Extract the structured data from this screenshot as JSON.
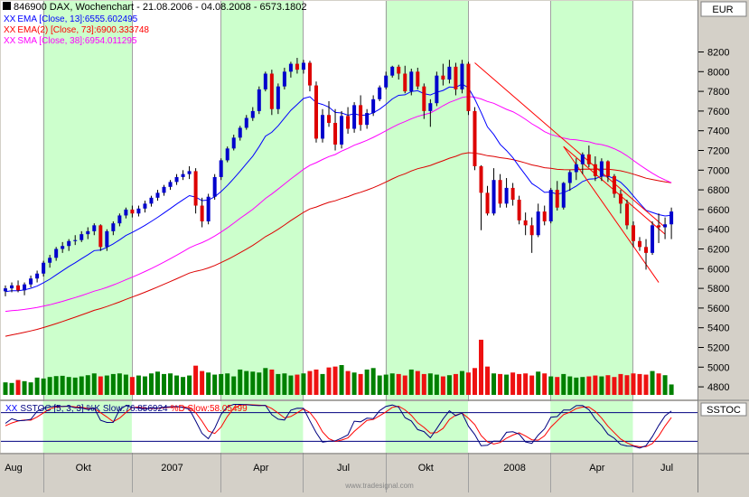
{
  "header": {
    "title": "846900  DAX, Wochenchart - 21.08.2006 - 04.08.2008 - 6573.1802",
    "currency": "EUR"
  },
  "legend": [
    {
      "marker": "XX",
      "text": "EMA [Close, 13]:6555.602495",
      "color": "#0000ff"
    },
    {
      "marker": "XX",
      "text": "EMA(2) [Close, 73]:6900.333748",
      "color": "#ff0000"
    },
    {
      "marker": "XX",
      "text": "SMA [Close, 38]:6954.011295",
      "color": "#ff00ff"
    }
  ],
  "stoch_panel": {
    "marker": "XX",
    "label_main": "SSTOC [5, 3, 3] %K Slow:76.856924",
    "label_d": "%D Slow:58.05499",
    "right_label": "SSTOC"
  },
  "watermark": "www.tradesignal.com",
  "colors": {
    "up": "#0000cc",
    "down": "#dd0000",
    "vol_up": "#008000",
    "vol_down": "#ee1111",
    "ema13": "#0000ff",
    "ema73": "#dd0000",
    "sma38": "#ff00ff",
    "stoch_k": "#000080",
    "stoch_d": "#ff0000",
    "shade": "#ccffcc",
    "plot_bg": "#ffffff",
    "frame_bg": "#d4d0c8"
  },
  "chart_data": {
    "type": "candlestick",
    "title": "846900  DAX, Wochenchart - 21.08.2006 - 04.08.2008 - 6573.1802",
    "y_axis": {
      "range": [
        4700,
        8400
      ],
      "ticks": [
        4800,
        5000,
        5200,
        5400,
        5600,
        5800,
        6000,
        6200,
        6400,
        6600,
        6800,
        7000,
        7200,
        7400,
        7600,
        7800,
        8000,
        8200
      ],
      "unit": "EUR"
    },
    "x_axis_labels": [
      "Aug",
      "Okt",
      "2007",
      "Apr",
      "Jul",
      "Okt",
      "2008",
      "Apr",
      "Jul"
    ],
    "x_axis_label_weeks": [
      1,
      12,
      26,
      40,
      53,
      66,
      80,
      93,
      104
    ],
    "x_gridline_weeks": [
      6,
      20,
      34,
      47,
      60,
      73,
      86,
      99
    ],
    "shaded_week_ranges": [
      [
        6,
        20
      ],
      [
        34,
        47
      ],
      [
        60,
        73
      ],
      [
        86,
        99
      ]
    ],
    "candles": [
      {
        "o": 5770,
        "h": 5830,
        "l": 5720,
        "c": 5800
      },
      {
        "o": 5800,
        "h": 5860,
        "l": 5760,
        "c": 5830
      },
      {
        "o": 5830,
        "h": 5880,
        "l": 5760,
        "c": 5780
      },
      {
        "o": 5780,
        "h": 5860,
        "l": 5730,
        "c": 5840
      },
      {
        "o": 5840,
        "h": 5930,
        "l": 5810,
        "c": 5900
      },
      {
        "o": 5900,
        "h": 5980,
        "l": 5860,
        "c": 5950
      },
      {
        "o": 5950,
        "h": 6080,
        "l": 5920,
        "c": 6060
      },
      {
        "o": 6060,
        "h": 6140,
        "l": 6010,
        "c": 6110
      },
      {
        "o": 6110,
        "h": 6220,
        "l": 6080,
        "c": 6200
      },
      {
        "o": 6200,
        "h": 6270,
        "l": 6160,
        "c": 6230
      },
      {
        "o": 6230,
        "h": 6300,
        "l": 6180,
        "c": 6280
      },
      {
        "o": 6280,
        "h": 6340,
        "l": 6240,
        "c": 6290
      },
      {
        "o": 6290,
        "h": 6380,
        "l": 6270,
        "c": 6350
      },
      {
        "o": 6350,
        "h": 6420,
        "l": 6300,
        "c": 6380
      },
      {
        "o": 6380,
        "h": 6460,
        "l": 6340,
        "c": 6440
      },
      {
        "o": 6440,
        "h": 6450,
        "l": 6180,
        "c": 6220
      },
      {
        "o": 6220,
        "h": 6400,
        "l": 6180,
        "c": 6380
      },
      {
        "o": 6380,
        "h": 6480,
        "l": 6340,
        "c": 6460
      },
      {
        "o": 6460,
        "h": 6560,
        "l": 6430,
        "c": 6540
      },
      {
        "o": 6540,
        "h": 6620,
        "l": 6510,
        "c": 6600
      },
      {
        "o": 6600,
        "h": 6640,
        "l": 6520,
        "c": 6560
      },
      {
        "o": 6560,
        "h": 6640,
        "l": 6530,
        "c": 6610
      },
      {
        "o": 6610,
        "h": 6690,
        "l": 6570,
        "c": 6660
      },
      {
        "o": 6660,
        "h": 6740,
        "l": 6630,
        "c": 6720
      },
      {
        "o": 6720,
        "h": 6800,
        "l": 6690,
        "c": 6770
      },
      {
        "o": 6770,
        "h": 6850,
        "l": 6740,
        "c": 6830
      },
      {
        "o": 6830,
        "h": 6900,
        "l": 6800,
        "c": 6880
      },
      {
        "o": 6880,
        "h": 6960,
        "l": 6850,
        "c": 6930
      },
      {
        "o": 6930,
        "h": 7000,
        "l": 6900,
        "c": 6960
      },
      {
        "o": 6960,
        "h": 7040,
        "l": 6910,
        "c": 6990
      },
      {
        "o": 6990,
        "h": 7020,
        "l": 6560,
        "c": 6640
      },
      {
        "o": 6640,
        "h": 6720,
        "l": 6420,
        "c": 6480
      },
      {
        "o": 6480,
        "h": 6760,
        "l": 6450,
        "c": 6730
      },
      {
        "o": 6730,
        "h": 6960,
        "l": 6700,
        "c": 6930
      },
      {
        "o": 6930,
        "h": 7120,
        "l": 6900,
        "c": 7100
      },
      {
        "o": 7100,
        "h": 7240,
        "l": 7080,
        "c": 7220
      },
      {
        "o": 7220,
        "h": 7360,
        "l": 7200,
        "c": 7330
      },
      {
        "o": 7330,
        "h": 7450,
        "l": 7300,
        "c": 7430
      },
      {
        "o": 7430,
        "h": 7560,
        "l": 7410,
        "c": 7530
      },
      {
        "o": 7530,
        "h": 7640,
        "l": 7500,
        "c": 7600
      },
      {
        "o": 7600,
        "h": 7850,
        "l": 7570,
        "c": 7820
      },
      {
        "o": 7820,
        "h": 8000,
        "l": 7800,
        "c": 7980
      },
      {
        "o": 7980,
        "h": 8020,
        "l": 7560,
        "c": 7620
      },
      {
        "o": 7620,
        "h": 7880,
        "l": 7570,
        "c": 7850
      },
      {
        "o": 7850,
        "h": 8040,
        "l": 7820,
        "c": 8000
      },
      {
        "o": 8000,
        "h": 8100,
        "l": 7940,
        "c": 8080
      },
      {
        "o": 8080,
        "h": 8140,
        "l": 7980,
        "c": 8020
      },
      {
        "o": 8020,
        "h": 8120,
        "l": 7980,
        "c": 8090
      },
      {
        "o": 8090,
        "h": 8110,
        "l": 7800,
        "c": 7860
      },
      {
        "o": 7860,
        "h": 7900,
        "l": 7280,
        "c": 7320
      },
      {
        "o": 7320,
        "h": 7620,
        "l": 7280,
        "c": 7560
      },
      {
        "o": 7560,
        "h": 7700,
        "l": 7440,
        "c": 7480
      },
      {
        "o": 7480,
        "h": 7620,
        "l": 7200,
        "c": 7260
      },
      {
        "o": 7260,
        "h": 7600,
        "l": 7220,
        "c": 7550
      },
      {
        "o": 7550,
        "h": 7640,
        "l": 7370,
        "c": 7420
      },
      {
        "o": 7420,
        "h": 7690,
        "l": 7380,
        "c": 7660
      },
      {
        "o": 7660,
        "h": 7760,
        "l": 7400,
        "c": 7460
      },
      {
        "o": 7460,
        "h": 7620,
        "l": 7420,
        "c": 7580
      },
      {
        "o": 7580,
        "h": 7760,
        "l": 7550,
        "c": 7720
      },
      {
        "o": 7720,
        "h": 7860,
        "l": 7700,
        "c": 7840
      },
      {
        "o": 7840,
        "h": 8000,
        "l": 7820,
        "c": 7960
      },
      {
        "o": 7960,
        "h": 8060,
        "l": 7940,
        "c": 8050
      },
      {
        "o": 8050,
        "h": 8070,
        "l": 7920,
        "c": 7980
      },
      {
        "o": 7980,
        "h": 8060,
        "l": 7780,
        "c": 7800
      },
      {
        "o": 7800,
        "h": 8030,
        "l": 7760,
        "c": 8000
      },
      {
        "o": 8000,
        "h": 8040,
        "l": 7820,
        "c": 7850
      },
      {
        "o": 7850,
        "h": 7880,
        "l": 7520,
        "c": 7600
      },
      {
        "o": 7600,
        "h": 7720,
        "l": 7440,
        "c": 7680
      },
      {
        "o": 7680,
        "h": 8000,
        "l": 7650,
        "c": 7960
      },
      {
        "o": 7960,
        "h": 8080,
        "l": 7860,
        "c": 7920
      },
      {
        "o": 7920,
        "h": 8120,
        "l": 7880,
        "c": 8050
      },
      {
        "o": 8050,
        "h": 8090,
        "l": 7760,
        "c": 7820
      },
      {
        "o": 7820,
        "h": 8120,
        "l": 7780,
        "c": 8080
      },
      {
        "o": 8080,
        "h": 8100,
        "l": 7560,
        "c": 7600
      },
      {
        "o": 7600,
        "h": 7640,
        "l": 7000,
        "c": 7040
      },
      {
        "o": 7040,
        "h": 7050,
        "l": 6390,
        "c": 6770
      },
      {
        "o": 6770,
        "h": 6840,
        "l": 6540,
        "c": 6560
      },
      {
        "o": 6560,
        "h": 7020,
        "l": 6540,
        "c": 6900
      },
      {
        "o": 6900,
        "h": 6960,
        "l": 6620,
        "c": 6660
      },
      {
        "o": 6660,
        "h": 6920,
        "l": 6620,
        "c": 6820
      },
      {
        "o": 6820,
        "h": 6870,
        "l": 6640,
        "c": 6700
      },
      {
        "o": 6700,
        "h": 6740,
        "l": 6450,
        "c": 6490
      },
      {
        "o": 6490,
        "h": 6570,
        "l": 6340,
        "c": 6440
      },
      {
        "o": 6440,
        "h": 6520,
        "l": 6160,
        "c": 6340
      },
      {
        "o": 6340,
        "h": 6660,
        "l": 6320,
        "c": 6580
      },
      {
        "o": 6580,
        "h": 6640,
        "l": 6440,
        "c": 6480
      },
      {
        "o": 6480,
        "h": 6820,
        "l": 6460,
        "c": 6800
      },
      {
        "o": 6800,
        "h": 6890,
        "l": 6590,
        "c": 6620
      },
      {
        "o": 6620,
        "h": 6880,
        "l": 6600,
        "c": 6870
      },
      {
        "o": 6870,
        "h": 7000,
        "l": 6790,
        "c": 6980
      },
      {
        "o": 6980,
        "h": 7120,
        "l": 6900,
        "c": 7060
      },
      {
        "o": 7060,
        "h": 7180,
        "l": 6960,
        "c": 7160
      },
      {
        "o": 7160,
        "h": 7250,
        "l": 7030,
        "c": 7060
      },
      {
        "o": 7060,
        "h": 7140,
        "l": 6890,
        "c": 6940
      },
      {
        "o": 6940,
        "h": 7120,
        "l": 6890,
        "c": 7090
      },
      {
        "o": 7090,
        "h": 7100,
        "l": 6880,
        "c": 6940
      },
      {
        "o": 6940,
        "h": 6960,
        "l": 6720,
        "c": 6760
      },
      {
        "o": 6760,
        "h": 6800,
        "l": 6560,
        "c": 6660
      },
      {
        "o": 6660,
        "h": 6700,
        "l": 6400,
        "c": 6440
      },
      {
        "o": 6440,
        "h": 6480,
        "l": 6220,
        "c": 6280
      },
      {
        "o": 6280,
        "h": 6320,
        "l": 6180,
        "c": 6220
      },
      {
        "o": 6220,
        "h": 6300,
        "l": 5990,
        "c": 6160
      },
      {
        "o": 6160,
        "h": 6480,
        "l": 6140,
        "c": 6440
      },
      {
        "o": 6440,
        "h": 6560,
        "l": 6260,
        "c": 6420
      },
      {
        "o": 6420,
        "h": 6520,
        "l": 6300,
        "c": 6450
      },
      {
        "o": 6450,
        "h": 6620,
        "l": 6300,
        "c": 6580
      }
    ],
    "volume_relative": [
      0.42,
      0.4,
      0.5,
      0.46,
      0.42,
      0.58,
      0.55,
      0.6,
      0.63,
      0.64,
      0.6,
      0.58,
      0.62,
      0.66,
      0.72,
      0.62,
      0.65,
      0.7,
      0.72,
      0.68,
      0.6,
      0.65,
      0.62,
      0.72,
      0.78,
      0.7,
      0.72,
      0.65,
      0.6,
      0.65,
      0.98,
      0.8,
      0.75,
      0.68,
      0.7,
      0.72,
      0.62,
      0.85,
      0.8,
      0.78,
      0.75,
      0.9,
      0.85,
      0.7,
      0.72,
      0.65,
      0.68,
      0.72,
      0.8,
      0.85,
      0.7,
      0.92,
      0.95,
      1.0,
      0.8,
      0.75,
      0.7,
      0.85,
      0.9,
      0.65,
      0.68,
      0.72,
      0.7,
      0.65,
      0.85,
      0.8,
      0.7,
      0.72,
      0.68,
      0.62,
      0.66,
      0.7,
      0.8,
      0.75,
      0.9,
      1.85,
      0.95,
      0.72,
      0.7,
      0.68,
      0.75,
      0.7,
      0.72,
      0.65,
      0.78,
      0.72,
      0.62,
      0.6,
      0.7,
      0.62,
      0.58,
      0.6,
      0.62,
      0.65,
      0.62,
      0.66,
      0.6,
      0.7,
      0.66,
      0.72,
      0.7,
      0.68,
      0.8,
      0.72,
      0.66,
      0.35
    ],
    "trendlines": [
      {
        "from": [
          88,
          7240
        ],
        "to": [
          104,
          6350
        ],
        "color": "#ff0000"
      },
      {
        "from": [
          74,
          8090
        ],
        "to": [
          104,
          6420
        ],
        "color": "#ff0000"
      },
      {
        "from": [
          88,
          7240
        ],
        "to": [
          103,
          5860
        ],
        "color": "#ff0000"
      }
    ],
    "stochastic": {
      "overbought": 80,
      "oversold": 20,
      "last_k": 76.856924,
      "last_d": 58.05499
    }
  }
}
